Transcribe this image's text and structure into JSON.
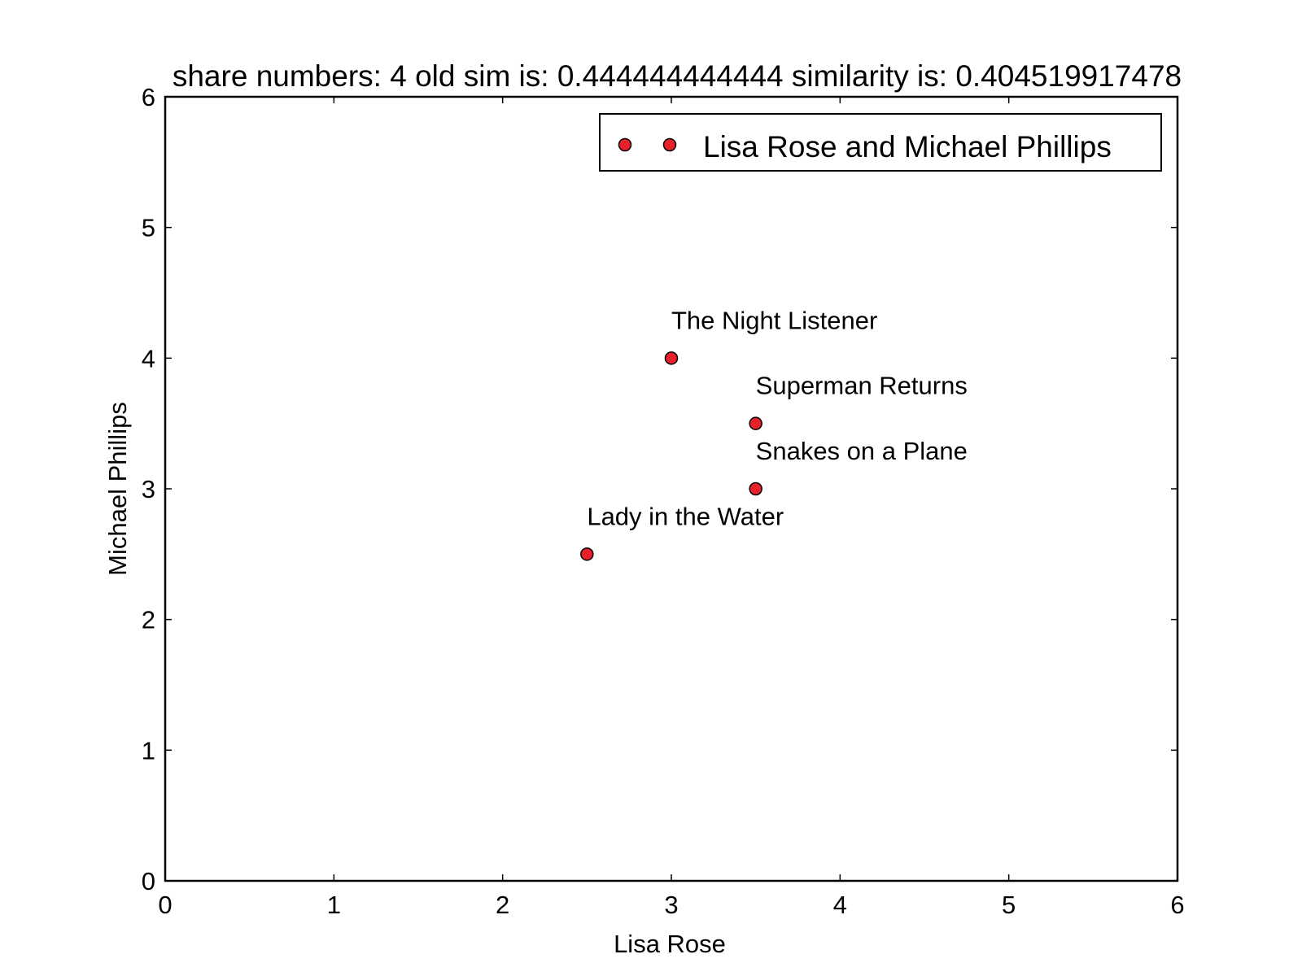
{
  "chart_data": {
    "type": "scatter",
    "title": "share numbers: 4 old sim is: 0.444444444444 similarity is: 0.404519917478",
    "xlabel": "Lisa Rose",
    "ylabel": "Michael Phillips",
    "xlim": [
      0,
      6
    ],
    "ylim": [
      0,
      6
    ],
    "xticks": [
      "0",
      "1",
      "2",
      "3",
      "4",
      "5",
      "6"
    ],
    "yticks": [
      "0",
      "1",
      "2",
      "3",
      "4",
      "5",
      "6"
    ],
    "grid": false,
    "legend": {
      "placement": "top-right",
      "entries": [
        "Lisa Rose and Michael Phillips"
      ]
    },
    "series": [
      {
        "name": "Lisa Rose and Michael Phillips",
        "color": "#e8202a",
        "points": [
          {
            "x": 3.0,
            "y": 4.0,
            "label": "The Night Listener"
          },
          {
            "x": 3.5,
            "y": 3.5,
            "label": "Superman Returns"
          },
          {
            "x": 3.5,
            "y": 3.0,
            "label": "Snakes on a Plane"
          },
          {
            "x": 2.5,
            "y": 2.5,
            "label": "Lady in the Water"
          }
        ]
      }
    ]
  }
}
